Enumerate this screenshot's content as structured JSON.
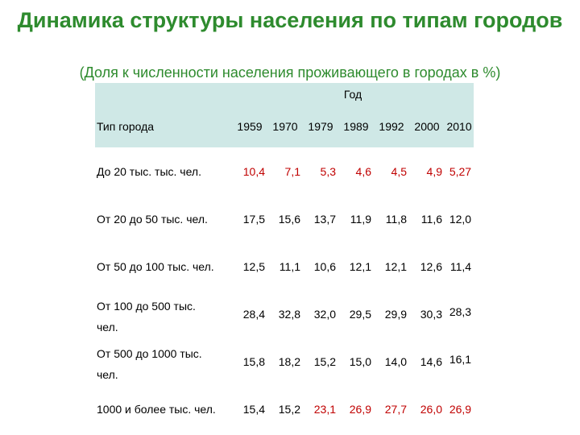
{
  "title": "Динамика структуры населения по типам городов",
  "subtitle": "(Доля к численности населения проживающего в городах в %)",
  "table": {
    "year_header": "Год",
    "type_header": "Тип города",
    "years": [
      "1959",
      "1970",
      "1979",
      "1989",
      "1992",
      "2000",
      "2010"
    ],
    "rows": [
      {
        "label_1": "До 20 тыс. тыс. чел.",
        "label_2": "",
        "values": [
          "10,4",
          "7,1",
          "5,3",
          "4,6",
          "4,5",
          "4,9",
          "5,27"
        ]
      },
      {
        "label_1": "От 20 до 50 тыс. чел.",
        "label_2": "",
        "values": [
          "17,5",
          "15,6",
          "13,7",
          "11,9",
          "11,8",
          "11,6",
          "12,0"
        ]
      },
      {
        "label_1": "От 50 до 100 тыс. чел.",
        "label_2": "",
        "values": [
          "12,5",
          "11,1",
          "10,6",
          "12,1",
          "12,1",
          "12,6",
          "11,4"
        ]
      },
      {
        "label_1": "От 100 до 500 тыс.",
        "label_2": "чел.",
        "values": [
          "28,4",
          "32,8",
          "32,0",
          "29,5",
          "29,9",
          "30,3",
          "28,3"
        ]
      },
      {
        "label_1": "От 500 до 1000 тыс.",
        "label_2": "чел.",
        "values": [
          "15,8",
          "18,2",
          "15,2",
          "15,0",
          "14,0",
          "14,6",
          "16,1"
        ]
      },
      {
        "label_1": "1000 и более тыс. чел.",
        "label_2": "",
        "values": [
          "15,4",
          "15,2",
          "23,1",
          "26,9",
          "27,7",
          "26,0",
          "26,9"
        ]
      }
    ],
    "red_value_color": "#c00000",
    "header_bg_color": "#cfe8e6",
    "title_color": "#2e8b2e"
  }
}
